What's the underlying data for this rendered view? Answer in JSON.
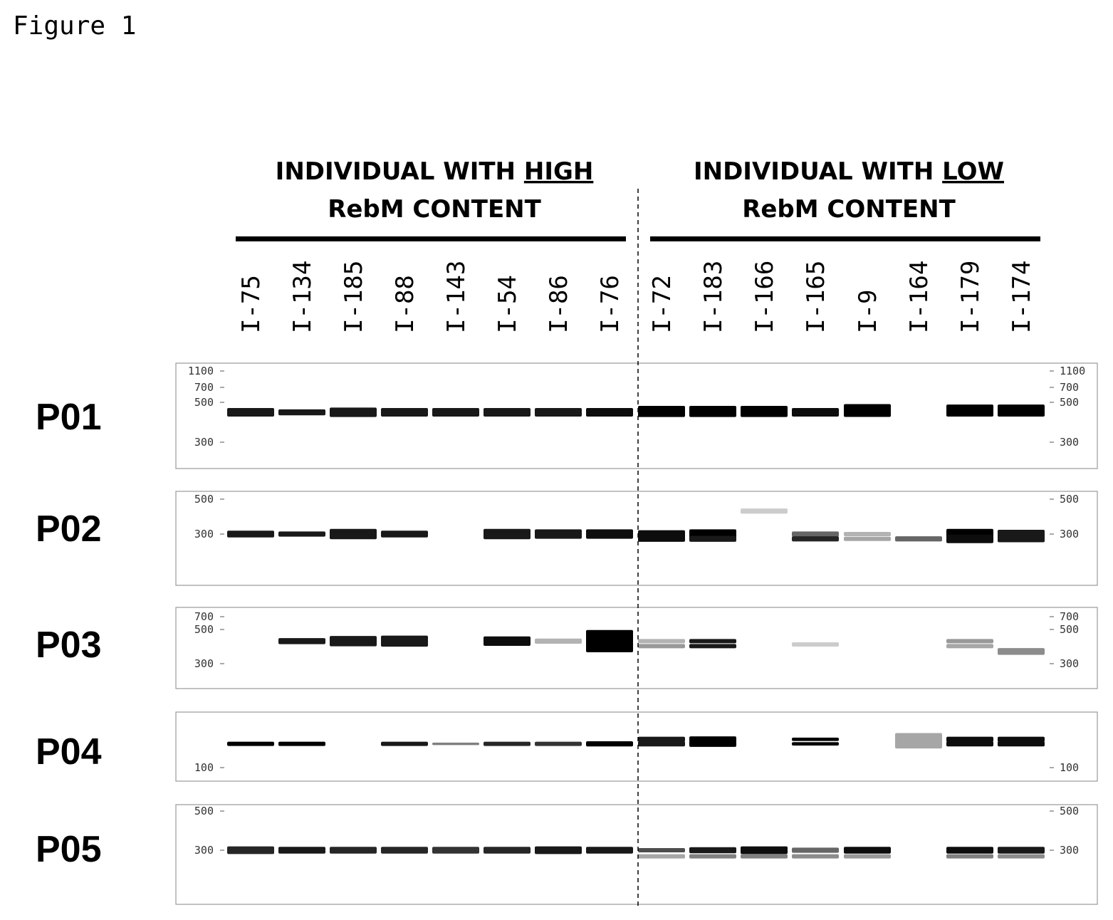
{
  "figure_label": "Figure 1",
  "groups": [
    {
      "line1_prefix": "INDIVIDUAL WITH ",
      "line1_emph": "HIGH",
      "line2": "RebM CONTENT"
    },
    {
      "line1_prefix": "INDIVIDUAL WITH ",
      "line1_emph": "LOW",
      "line2": "RebM CONTENT"
    }
  ],
  "lanes": [
    "I-75",
    "I-134",
    "I-185",
    "I-88",
    "I-143",
    "I-54",
    "I-86",
    "I-76",
    "I-72",
    "I-183",
    "I-166",
    "I-165",
    "I-9",
    "I-164",
    "I-179",
    "I-174"
  ],
  "panels": [
    {
      "primer": "P01",
      "ladder": [
        {
          "label": "1100",
          "bp": 1100
        },
        {
          "label": "700",
          "bp": 700
        },
        {
          "label": "500",
          "bp": 500
        },
        {
          "label": "300",
          "bp": 300
        }
      ],
      "bands": [
        {
          "lane": 0,
          "bp": 440,
          "w": 1.0,
          "i": 0.9
        },
        {
          "lane": 1,
          "bp": 440,
          "w": 0.7,
          "i": 0.9
        },
        {
          "lane": 2,
          "bp": 440,
          "w": 1.1,
          "i": 0.9
        },
        {
          "lane": 3,
          "bp": 440,
          "w": 1.0,
          "i": 0.9
        },
        {
          "lane": 4,
          "bp": 440,
          "w": 1.0,
          "i": 0.9
        },
        {
          "lane": 5,
          "bp": 440,
          "w": 1.0,
          "i": 0.9
        },
        {
          "lane": 6,
          "bp": 440,
          "w": 1.0,
          "i": 0.9
        },
        {
          "lane": 7,
          "bp": 440,
          "w": 1.0,
          "i": 0.95
        },
        {
          "lane": 8,
          "bp": 445,
          "w": 1.3,
          "i": 1.0
        },
        {
          "lane": 9,
          "bp": 445,
          "w": 1.3,
          "i": 1.0
        },
        {
          "lane": 10,
          "bp": 445,
          "w": 1.3,
          "i": 1.0
        },
        {
          "lane": 11,
          "bp": 440,
          "w": 1.0,
          "i": 0.95
        },
        {
          "lane": 12,
          "bp": 450,
          "w": 1.5,
          "i": 1.0
        },
        {
          "lane": 14,
          "bp": 450,
          "w": 1.4,
          "i": 1.0
        },
        {
          "lane": 15,
          "bp": 450,
          "w": 1.4,
          "i": 1.0
        }
      ]
    },
    {
      "primer": "P02",
      "ladder": [
        {
          "label": "500",
          "bp": 500
        },
        {
          "label": "300",
          "bp": 300
        }
      ],
      "bands": [
        {
          "lane": 0,
          "bp": 300,
          "w": 0.8,
          "i": 0.9
        },
        {
          "lane": 1,
          "bp": 300,
          "w": 0.6,
          "i": 0.9
        },
        {
          "lane": 2,
          "bp": 300,
          "w": 1.2,
          "i": 0.9
        },
        {
          "lane": 3,
          "bp": 300,
          "w": 0.8,
          "i": 0.9
        },
        {
          "lane": 5,
          "bp": 300,
          "w": 1.2,
          "i": 0.9
        },
        {
          "lane": 6,
          "bp": 300,
          "w": 1.1,
          "i": 0.9
        },
        {
          "lane": 7,
          "bp": 300,
          "w": 1.1,
          "i": 0.95
        },
        {
          "lane": 8,
          "bp": 300,
          "w": 0.9,
          "i": 0.95
        },
        {
          "lane": 8,
          "bp": 270,
          "w": 0.7,
          "i": 0.95
        },
        {
          "lane": 9,
          "bp": 300,
          "w": 1.1,
          "i": 1.0
        },
        {
          "lane": 9,
          "bp": 270,
          "w": 0.7,
          "i": 0.9
        },
        {
          "lane": 10,
          "bp": 420,
          "w": 0.6,
          "i": 0.2
        },
        {
          "lane": 11,
          "bp": 300,
          "w": 0.6,
          "i": 0.6
        },
        {
          "lane": 11,
          "bp": 270,
          "w": 0.6,
          "i": 0.85
        },
        {
          "lane": 12,
          "bp": 300,
          "w": 0.5,
          "i": 0.3
        },
        {
          "lane": 12,
          "bp": 270,
          "w": 0.5,
          "i": 0.35
        },
        {
          "lane": 13,
          "bp": 270,
          "w": 0.6,
          "i": 0.6
        },
        {
          "lane": 14,
          "bp": 300,
          "w": 1.2,
          "i": 1.0
        },
        {
          "lane": 14,
          "bp": 270,
          "w": 1.0,
          "i": 0.95
        },
        {
          "lane": 15,
          "bp": 300,
          "w": 1.0,
          "i": 0.9
        },
        {
          "lane": 15,
          "bp": 270,
          "w": 0.8,
          "i": 0.9
        }
      ]
    },
    {
      "primer": "P03",
      "ladder": [
        {
          "label": "700",
          "bp": 700
        },
        {
          "label": "500",
          "bp": 500
        },
        {
          "label": "300",
          "bp": 300
        }
      ],
      "bands": [
        {
          "lane": 1,
          "bp": 420,
          "w": 0.7,
          "i": 0.9
        },
        {
          "lane": 2,
          "bp": 420,
          "w": 1.2,
          "i": 0.9
        },
        {
          "lane": 3,
          "bp": 420,
          "w": 1.3,
          "i": 0.9
        },
        {
          "lane": 5,
          "bp": 420,
          "w": 1.1,
          "i": 0.95
        },
        {
          "lane": 6,
          "bp": 420,
          "w": 0.6,
          "i": 0.3
        },
        {
          "lane": 7,
          "bp": 420,
          "w": 2.6,
          "i": 1.0
        },
        {
          "lane": 8,
          "bp": 420,
          "w": 0.5,
          "i": 0.3
        },
        {
          "lane": 8,
          "bp": 390,
          "w": 0.5,
          "i": 0.4
        },
        {
          "lane": 9,
          "bp": 420,
          "w": 0.5,
          "i": 0.9
        },
        {
          "lane": 9,
          "bp": 390,
          "w": 0.5,
          "i": 0.9
        },
        {
          "lane": 11,
          "bp": 400,
          "w": 0.5,
          "i": 0.2
        },
        {
          "lane": 14,
          "bp": 420,
          "w": 0.5,
          "i": 0.4
        },
        {
          "lane": 14,
          "bp": 390,
          "w": 0.5,
          "i": 0.35
        },
        {
          "lane": 15,
          "bp": 360,
          "w": 0.8,
          "i": 0.45
        }
      ]
    },
    {
      "primer": "P04",
      "ladder": [
        {
          "label": "100",
          "bp": 100
        }
      ],
      "bands": [
        {
          "lane": 0,
          "bp": 160,
          "w": 0.5,
          "i": 1.0
        },
        {
          "lane": 1,
          "bp": 160,
          "w": 0.5,
          "i": 1.0
        },
        {
          "lane": 3,
          "bp": 160,
          "w": 0.5,
          "i": 0.9
        },
        {
          "lane": 4,
          "bp": 160,
          "w": 0.3,
          "i": 0.5
        },
        {
          "lane": 5,
          "bp": 160,
          "w": 0.5,
          "i": 0.85
        },
        {
          "lane": 6,
          "bp": 160,
          "w": 0.5,
          "i": 0.8
        },
        {
          "lane": 7,
          "bp": 160,
          "w": 0.6,
          "i": 1.0
        },
        {
          "lane": 8,
          "bp": 175,
          "w": 0.6,
          "i": 0.9
        },
        {
          "lane": 8,
          "bp": 160,
          "w": 0.6,
          "i": 0.9
        },
        {
          "lane": 9,
          "bp": 175,
          "w": 0.7,
          "i": 1.0
        },
        {
          "lane": 9,
          "bp": 160,
          "w": 0.7,
          "i": 1.0
        },
        {
          "lane": 11,
          "bp": 175,
          "w": 0.4,
          "i": 1.0
        },
        {
          "lane": 11,
          "bp": 160,
          "w": 0.4,
          "i": 1.0
        },
        {
          "lane": 13,
          "bp": 170,
          "w": 1.8,
          "i": 0.35
        },
        {
          "lane": 14,
          "bp": 175,
          "w": 0.6,
          "i": 0.95
        },
        {
          "lane": 14,
          "bp": 160,
          "w": 0.6,
          "i": 0.95
        },
        {
          "lane": 15,
          "bp": 175,
          "w": 0.6,
          "i": 0.95
        },
        {
          "lane": 15,
          "bp": 160,
          "w": 0.6,
          "i": 0.95
        }
      ]
    },
    {
      "primer": "P05",
      "ladder": [
        {
          "label": "500",
          "bp": 500
        },
        {
          "label": "300",
          "bp": 300
        }
      ],
      "bands": [
        {
          "lane": 0,
          "bp": 300,
          "w": 0.9,
          "i": 0.85
        },
        {
          "lane": 1,
          "bp": 300,
          "w": 0.8,
          "i": 0.9
        },
        {
          "lane": 2,
          "bp": 300,
          "w": 0.8,
          "i": 0.85
        },
        {
          "lane": 3,
          "bp": 300,
          "w": 0.8,
          "i": 0.85
        },
        {
          "lane": 4,
          "bp": 300,
          "w": 0.8,
          "i": 0.8
        },
        {
          "lane": 5,
          "bp": 300,
          "w": 0.8,
          "i": 0.85
        },
        {
          "lane": 6,
          "bp": 300,
          "w": 0.9,
          "i": 0.9
        },
        {
          "lane": 7,
          "bp": 300,
          "w": 0.8,
          "i": 0.9
        },
        {
          "lane": 8,
          "bp": 300,
          "w": 0.5,
          "i": 0.7
        },
        {
          "lane": 8,
          "bp": 260,
          "w": 0.5,
          "i": 0.35
        },
        {
          "lane": 9,
          "bp": 300,
          "w": 0.7,
          "i": 0.9
        },
        {
          "lane": 9,
          "bp": 260,
          "w": 0.5,
          "i": 0.5
        },
        {
          "lane": 10,
          "bp": 300,
          "w": 0.9,
          "i": 0.95
        },
        {
          "lane": 10,
          "bp": 260,
          "w": 0.5,
          "i": 0.5
        },
        {
          "lane": 11,
          "bp": 300,
          "w": 0.6,
          "i": 0.6
        },
        {
          "lane": 11,
          "bp": 260,
          "w": 0.5,
          "i": 0.45
        },
        {
          "lane": 12,
          "bp": 300,
          "w": 0.8,
          "i": 0.95
        },
        {
          "lane": 12,
          "bp": 260,
          "w": 0.5,
          "i": 0.4
        },
        {
          "lane": 14,
          "bp": 300,
          "w": 0.8,
          "i": 0.95
        },
        {
          "lane": 14,
          "bp": 260,
          "w": 0.5,
          "i": 0.5
        },
        {
          "lane": 15,
          "bp": 300,
          "w": 0.8,
          "i": 0.9
        },
        {
          "lane": 15,
          "bp": 260,
          "w": 0.5,
          "i": 0.45
        }
      ]
    }
  ]
}
